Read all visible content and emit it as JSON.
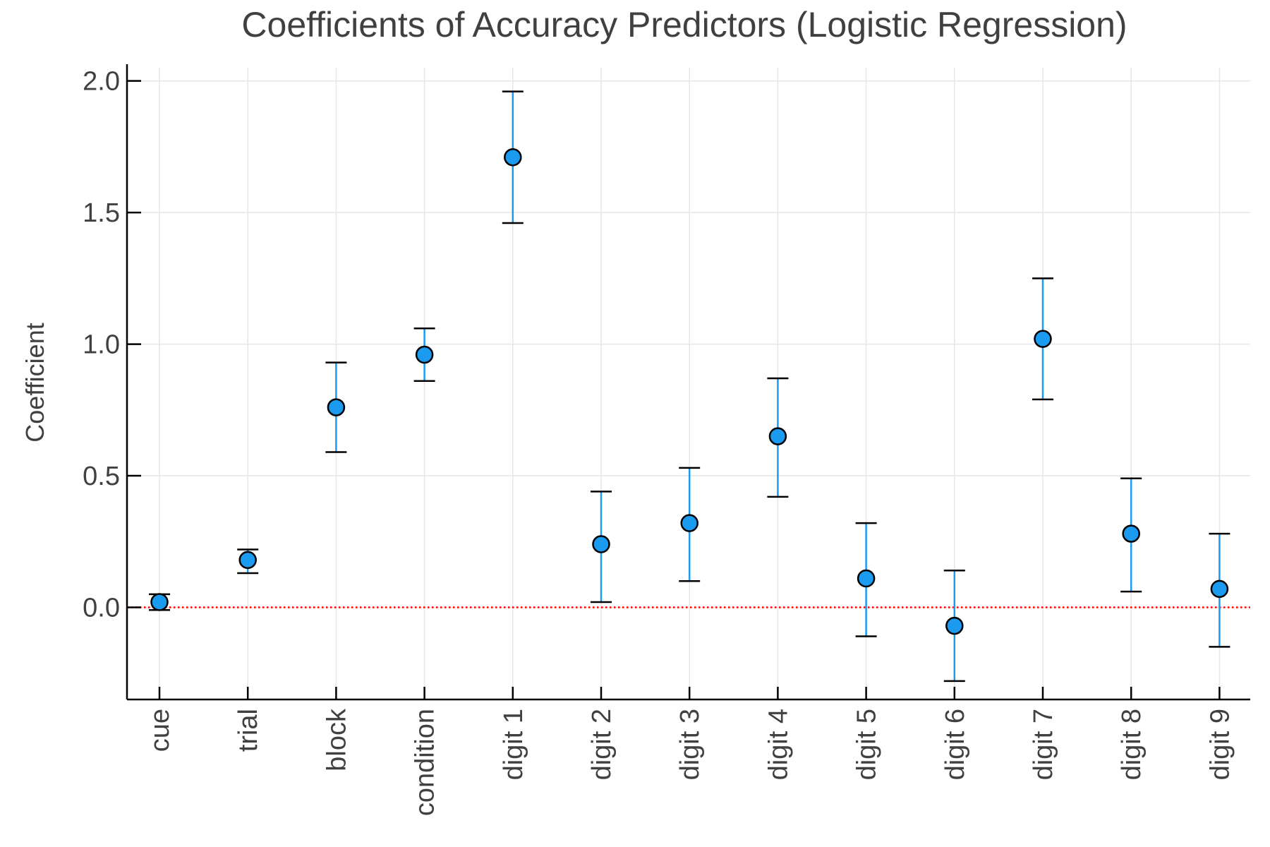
{
  "chart_data": {
    "type": "scatter",
    "title": "Coefficients of Accuracy Predictors (Logistic Regression)",
    "xlabel": "",
    "ylabel": "Coefficient",
    "categories": [
      "cue",
      "trial",
      "block",
      "condition",
      "digit 1",
      "digit 2",
      "digit 3",
      "digit 4",
      "digit 5",
      "digit 6",
      "digit 7",
      "digit 8",
      "digit 9"
    ],
    "values": [
      0.02,
      0.18,
      0.76,
      0.96,
      1.71,
      0.24,
      0.32,
      0.65,
      0.11,
      -0.07,
      1.02,
      0.28,
      0.07
    ],
    "error_lower": [
      -0.01,
      0.13,
      0.59,
      0.86,
      1.46,
      0.02,
      0.1,
      0.42,
      -0.11,
      -0.28,
      0.79,
      0.06,
      -0.15
    ],
    "error_upper": [
      0.05,
      0.22,
      0.93,
      1.06,
      1.96,
      0.44,
      0.53,
      0.87,
      0.32,
      0.14,
      1.25,
      0.49,
      0.28
    ],
    "ylim": [
      -0.35,
      2.05
    ],
    "yticks": [
      "0.0",
      "0.5",
      "1.0",
      "1.5",
      "2.0"
    ],
    "ytick_values": [
      0.0,
      0.5,
      1.0,
      1.5,
      2.0
    ],
    "reference_line": 0.0,
    "grid": true,
    "colors": {
      "marker_fill": "#1a9bf0",
      "errorbar": "#1a9bf0",
      "reference_line": "#ff0000",
      "grid": "#e6e6e6",
      "axis": "#000000",
      "text": "#404040"
    }
  }
}
